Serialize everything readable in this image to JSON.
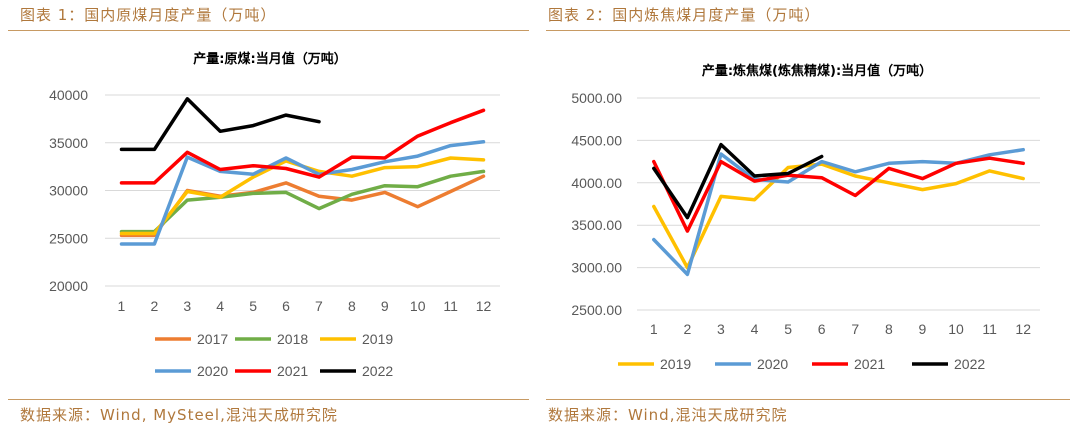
{
  "left_panel": {
    "heading": "图表 1：国内原煤月度产量（万吨）",
    "source": "数据来源：Wind, MySteel,混沌天成研究院"
  },
  "right_panel": {
    "heading": "图表 2：国内炼焦煤月度产量（万吨）",
    "source": "数据来源：Wind,混沌天成研究院"
  },
  "colors": {
    "2017": "#ED7D31",
    "2018": "#70AD47",
    "2019": "#FFC000",
    "2020": "#5B9BD5",
    "2021": "#FF0000",
    "2022": "#000000"
  },
  "chart_data": [
    {
      "type": "line",
      "title": "产量:原煤:当月值（万吨）",
      "categories": [
        "1",
        "2",
        "3",
        "4",
        "5",
        "6",
        "7",
        "8",
        "9",
        "10",
        "11",
        "12"
      ],
      "ylim": [
        20000,
        40000
      ],
      "yticks": [
        "20000",
        "25000",
        "30000",
        "35000",
        "40000"
      ],
      "grid": true,
      "legend_position": "bottom",
      "series": [
        {
          "name": "2017",
          "values": [
            25300,
            25300,
            30000,
            29400,
            29800,
            30800,
            29400,
            29000,
            29800,
            28300,
            29900,
            31500
          ]
        },
        {
          "name": "2018",
          "values": [
            25700,
            25700,
            29000,
            29300,
            29700,
            29800,
            28100,
            29600,
            30500,
            30400,
            31500,
            32000
          ]
        },
        {
          "name": "2019",
          "values": [
            25500,
            25500,
            29900,
            29300,
            31400,
            33100,
            32000,
            31500,
            32400,
            32500,
            33400,
            33200
          ]
        },
        {
          "name": "2020",
          "values": [
            24400,
            24400,
            33500,
            32000,
            31700,
            33400,
            31700,
            32200,
            33000,
            33600,
            34700,
            35100
          ]
        },
        {
          "name": "2021",
          "values": [
            30800,
            30800,
            34000,
            32200,
            32600,
            32300,
            31400,
            33500,
            33400,
            35700,
            37100,
            38400
          ]
        },
        {
          "name": "2022",
          "values": [
            34300,
            34300,
            39600,
            36200,
            36800,
            37900,
            37200,
            null,
            null,
            null,
            null,
            null
          ]
        }
      ]
    },
    {
      "type": "line",
      "title": "产量:炼焦煤(炼焦精煤):当月值（万吨）",
      "categories": [
        "1",
        "2",
        "3",
        "4",
        "5",
        "6",
        "7",
        "8",
        "9",
        "10",
        "11",
        "12"
      ],
      "ylim": [
        2500,
        5000
      ],
      "yticks": [
        "2500.00",
        "3000.00",
        "3500.00",
        "4000.00",
        "4500.00",
        "5000.00"
      ],
      "grid": true,
      "legend_position": "bottom",
      "series": [
        {
          "name": "2019",
          "values": [
            3720,
            3000,
            3840,
            3800,
            4180,
            4220,
            4080,
            4000,
            3920,
            3990,
            4140,
            4050
          ]
        },
        {
          "name": "2020",
          "values": [
            3330,
            2920,
            4340,
            4040,
            4010,
            4250,
            4130,
            4230,
            4250,
            4230,
            4330,
            4390
          ]
        },
        {
          "name": "2021",
          "values": [
            4250,
            3430,
            4250,
            4020,
            4090,
            4060,
            3850,
            4170,
            4050,
            4230,
            4290,
            4230
          ]
        },
        {
          "name": "2022",
          "values": [
            4170,
            3590,
            4450,
            4080,
            4110,
            4310,
            null,
            null,
            null,
            null,
            null,
            null
          ]
        }
      ]
    }
  ]
}
